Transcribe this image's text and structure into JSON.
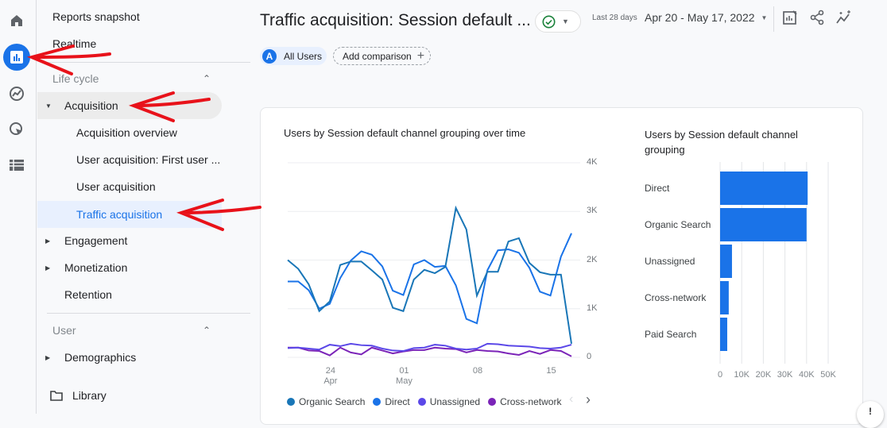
{
  "rail": {
    "icons": [
      "home-icon",
      "reports-icon",
      "explore-icon",
      "advertising-icon",
      "configure-icon"
    ]
  },
  "nav": {
    "reports_snapshot": "Reports snapshot",
    "realtime": "Realtime",
    "lifecycle": "Life cycle",
    "acquisition": "Acquisition",
    "acquisition_overview": "Acquisition overview",
    "user_acq_first": "User acquisition: First user ...",
    "user_acquisition": "User acquisition",
    "traffic_acquisition": "Traffic acquisition",
    "engagement": "Engagement",
    "monetization": "Monetization",
    "retention": "Retention",
    "user": "User",
    "demographics": "Demographics",
    "library": "Library"
  },
  "header": {
    "title": "Traffic acquisition: Session default ...",
    "date_prefix": "Last 28 days",
    "date_range": "Apr 20 - May 17, 2022",
    "segment_badge": "A",
    "segment": "All Users",
    "add_comparison": "Add comparison"
  },
  "colors": {
    "accent": "#1a73e8",
    "annotation": "#e8121a"
  },
  "chart_data": [
    {
      "type": "line",
      "title": "Users by Session default channel grouping over time",
      "x_ticks": [
        {
          "day": "24",
          "month": "Apr"
        },
        {
          "day": "01",
          "month": "May"
        },
        {
          "day": "08",
          "month": ""
        },
        {
          "day": "15",
          "month": ""
        }
      ],
      "x": [
        "Apr 20",
        "Apr 21",
        "Apr 22",
        "Apr 23",
        "Apr 24",
        "Apr 25",
        "Apr 26",
        "Apr 27",
        "Apr 28",
        "Apr 29",
        "Apr 30",
        "May 1",
        "May 2",
        "May 3",
        "May 4",
        "May 5",
        "May 6",
        "May 7",
        "May 8",
        "May 9",
        "May 10",
        "May 11",
        "May 12",
        "May 13",
        "May 14",
        "May 15",
        "May 16",
        "May 17"
      ],
      "y_ticks": [
        "4K",
        "3K",
        "2K",
        "1K",
        "0"
      ],
      "ylim": [
        0,
        4000
      ],
      "grid": true,
      "legend": "bottom",
      "series": [
        {
          "name": "Organic Search",
          "color": "#1976b7",
          "values": [
            2000,
            1820,
            1500,
            950,
            1150,
            1900,
            1970,
            1970,
            1790,
            1600,
            1020,
            950,
            1600,
            1800,
            1730,
            1860,
            3070,
            2630,
            1270,
            1760,
            1760,
            2380,
            2450,
            1940,
            1750,
            1700,
            1700,
            280
          ]
        },
        {
          "name": "Direct",
          "color": "#1a73e8",
          "values": [
            1560,
            1560,
            1380,
            1000,
            1100,
            1630,
            1990,
            2180,
            2110,
            1870,
            1370,
            1280,
            1910,
            2000,
            1860,
            1880,
            1480,
            790,
            700,
            1790,
            2200,
            2220,
            2150,
            1840,
            1350,
            1270,
            2070,
            2550
          ]
        },
        {
          "name": "Unassigned",
          "color": "#5b48e8",
          "values": [
            190,
            200,
            180,
            160,
            260,
            230,
            280,
            250,
            240,
            180,
            140,
            130,
            190,
            200,
            260,
            240,
            180,
            160,
            180,
            280,
            270,
            240,
            230,
            220,
            190,
            180,
            200,
            260
          ]
        },
        {
          "name": "Cross-network",
          "color": "#7b24b8",
          "values": [
            200,
            200,
            140,
            130,
            40,
            200,
            100,
            60,
            200,
            140,
            80,
            120,
            150,
            150,
            200,
            180,
            170,
            100,
            150,
            130,
            120,
            80,
            50,
            130,
            70,
            150,
            130,
            20
          ]
        }
      ]
    },
    {
      "type": "bar",
      "title": "Users by Session default channel grouping",
      "orientation": "horizontal",
      "categories": [
        "Direct",
        "Organic Search",
        "Unassigned",
        "Cross-network",
        "Paid Search"
      ],
      "values": [
        40500,
        40000,
        5500,
        4000,
        3300
      ],
      "x_ticks": [
        "0",
        "10K",
        "20K",
        "30K",
        "40K",
        "50K"
      ],
      "xlim": [
        0,
        50000
      ],
      "color": "#1a73e8"
    }
  ]
}
